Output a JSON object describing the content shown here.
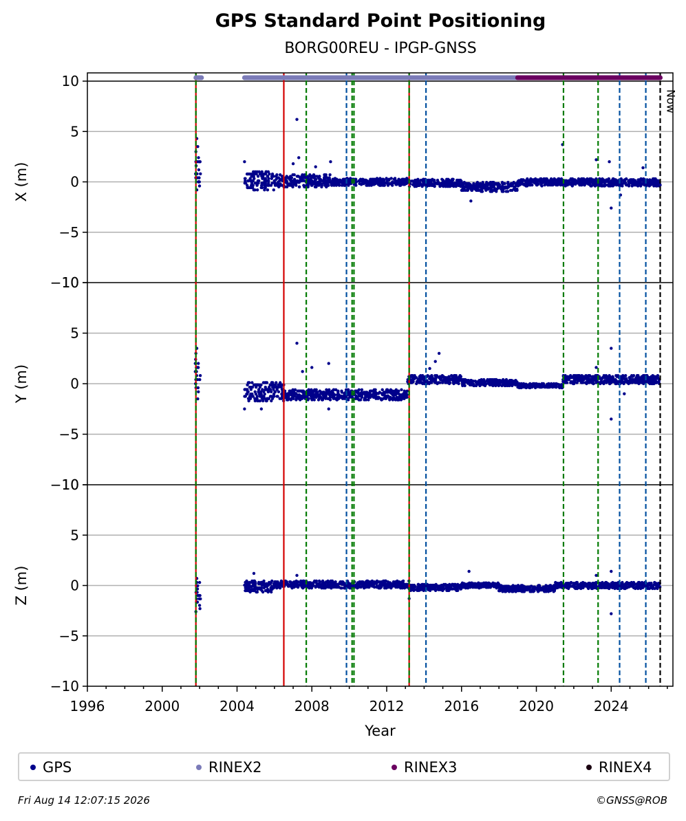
{
  "header": {
    "title": "GPS Standard Point Positioning",
    "subtitle": "BORG00REU - IPGP-GNSS"
  },
  "footer": {
    "timestamp": "Fri Aug 14 12:07:15 2026",
    "copyright": "©GNSS@ROB"
  },
  "colors": {
    "gps": "#00008b",
    "rinex2": "#7b7bb8",
    "rinex3": "#6a0060",
    "rinex4": "#1a0010",
    "red_line": "#d40000",
    "green_dash": "#007a00",
    "blue_dash": "#0050a0",
    "now_dash": "#000000",
    "grid": "#b0b0b0"
  },
  "legend": [
    {
      "label": "GPS",
      "color": "#00008b"
    },
    {
      "label": "RINEX2",
      "color": "#7b7bb8"
    },
    {
      "label": "RINEX3",
      "color": "#6a0060"
    },
    {
      "label": "RINEX4",
      "color": "#1a0010"
    }
  ],
  "chart_data": {
    "type": "scatter",
    "title": "GPS Standard Point Positioning",
    "subtitle": "BORG00REU - IPGP-GNSS",
    "xlabel": "Year",
    "xlim": [
      1996,
      2027.3
    ],
    "xticks": [
      1996,
      2000,
      2004,
      2008,
      2012,
      2016,
      2020,
      2024
    ],
    "ylim": [
      -10,
      10
    ],
    "yticks": [
      -10,
      -5,
      0,
      5,
      10
    ],
    "grid": true,
    "legend_position": "bottom",
    "now_label": "Now",
    "now_year": 2026.62,
    "panels": [
      {
        "ylabel": "X (m)",
        "segments": [
          {
            "x": [
              2001.75,
              2002.05
            ],
            "center": 0.8,
            "spread": 1.6
          },
          {
            "x": [
              2004.4,
              2006.0
            ],
            "center": 0.1,
            "spread": 0.9
          },
          {
            "x": [
              2006.0,
              2009.0
            ],
            "center": 0.1,
            "spread": 0.6
          },
          {
            "x": [
              2009.0,
              2013.2
            ],
            "center": 0.0,
            "spread": 0.35
          },
          {
            "x": [
              2013.2,
              2016.0
            ],
            "center": -0.1,
            "spread": 0.35
          },
          {
            "x": [
              2016.0,
              2019.0
            ],
            "center": -0.5,
            "spread": 0.45
          },
          {
            "x": [
              2019.0,
              2026.62
            ],
            "center": -0.05,
            "spread": 0.35
          }
        ],
        "outliers": [
          [
            2001.85,
            4.3
          ],
          [
            2001.8,
            3.0
          ],
          [
            2001.9,
            3.5
          ],
          [
            2001.85,
            -0.8
          ],
          [
            2007.2,
            6.2
          ],
          [
            2007.3,
            2.4
          ],
          [
            2007.0,
            1.8
          ],
          [
            2009.0,
            2.0
          ],
          [
            2004.4,
            2.0
          ],
          [
            2021.4,
            3.7
          ],
          [
            2023.2,
            2.2
          ],
          [
            2023.9,
            2.0
          ],
          [
            2024.0,
            -2.6
          ],
          [
            2024.5,
            -1.3
          ],
          [
            2025.7,
            1.4
          ],
          [
            2016.5,
            -1.9
          ],
          [
            2008.2,
            1.5
          ]
        ]
      },
      {
        "ylabel": "Y (m)",
        "segments": [
          {
            "x": [
              2001.75,
              2002.05
            ],
            "center": 0.8,
            "spread": 1.6
          },
          {
            "x": [
              2004.4,
              2006.5
            ],
            "center": -0.8,
            "spread": 0.9
          },
          {
            "x": [
              2006.5,
              2013.1
            ],
            "center": -1.1,
            "spread": 0.5
          },
          {
            "x": [
              2013.1,
              2016.0
            ],
            "center": 0.4,
            "spread": 0.4
          },
          {
            "x": [
              2016.0,
              2019.0
            ],
            "center": 0.1,
            "spread": 0.3
          },
          {
            "x": [
              2019.0,
              2021.4
            ],
            "center": -0.2,
            "spread": 0.2
          },
          {
            "x": [
              2021.4,
              2026.62
            ],
            "center": 0.4,
            "spread": 0.4
          }
        ],
        "outliers": [
          [
            2001.85,
            3.5
          ],
          [
            2001.8,
            3.0
          ],
          [
            2001.9,
            -1.5
          ],
          [
            2007.2,
            4.0
          ],
          [
            2007.5,
            1.2
          ],
          [
            2008.0,
            1.6
          ],
          [
            2008.9,
            2.0
          ],
          [
            2008.9,
            -2.5
          ],
          [
            2014.8,
            3.0
          ],
          [
            2014.6,
            2.2
          ],
          [
            2014.3,
            1.5
          ],
          [
            2024.0,
            3.5
          ],
          [
            2024.0,
            -3.5
          ],
          [
            2004.4,
            -2.5
          ],
          [
            2005.3,
            -2.5
          ],
          [
            2023.2,
            1.6
          ],
          [
            2024.7,
            -1.0
          ]
        ]
      },
      {
        "ylabel": "Z (m)",
        "segments": [
          {
            "x": [
              2001.75,
              2002.05
            ],
            "center": -1.0,
            "spread": 1.3
          },
          {
            "x": [
              2004.4,
              2006.0
            ],
            "center": -0.1,
            "spread": 0.55
          },
          {
            "x": [
              2006.0,
              2013.2
            ],
            "center": 0.1,
            "spread": 0.35
          },
          {
            "x": [
              2013.2,
              2016.0
            ],
            "center": -0.2,
            "spread": 0.3
          },
          {
            "x": [
              2016.0,
              2018.0
            ],
            "center": 0.0,
            "spread": 0.25
          },
          {
            "x": [
              2018.0,
              2021.0
            ],
            "center": -0.3,
            "spread": 0.3
          },
          {
            "x": [
              2021.0,
              2026.62
            ],
            "center": 0.0,
            "spread": 0.3
          }
        ],
        "outliers": [
          [
            2001.8,
            -2.6
          ],
          [
            2001.85,
            0.7
          ],
          [
            2004.9,
            1.2
          ],
          [
            2007.2,
            1.0
          ],
          [
            2013.2,
            -1.3
          ],
          [
            2016.4,
            1.4
          ],
          [
            2023.2,
            1.0
          ],
          [
            2024.0,
            1.4
          ],
          [
            2024.0,
            -2.8
          ]
        ]
      }
    ],
    "vertical_lines": [
      {
        "x": 2001.8,
        "style": "solid",
        "color": "#d40000"
      },
      {
        "x": 2001.8,
        "style": "dashed",
        "color": "#007a00"
      },
      {
        "x": 2006.5,
        "style": "solid",
        "color": "#d40000"
      },
      {
        "x": 2007.7,
        "style": "dashed",
        "color": "#007a00"
      },
      {
        "x": 2009.85,
        "style": "dashed",
        "color": "#0050a0"
      },
      {
        "x": 2010.15,
        "style": "dashed",
        "color": "#007a00"
      },
      {
        "x": 2010.25,
        "style": "dashed",
        "color": "#007a00"
      },
      {
        "x": 2013.2,
        "style": "solid",
        "color": "#d40000"
      },
      {
        "x": 2013.2,
        "style": "dashed",
        "color": "#007a00"
      },
      {
        "x": 2014.1,
        "style": "dashed",
        "color": "#0050a0"
      },
      {
        "x": 2021.45,
        "style": "dashed",
        "color": "#007a00"
      },
      {
        "x": 2023.3,
        "style": "dashed",
        "color": "#007a00"
      },
      {
        "x": 2024.45,
        "style": "dashed",
        "color": "#0050a0"
      },
      {
        "x": 2025.85,
        "style": "dashed",
        "color": "#0050a0"
      },
      {
        "x": 2026.62,
        "style": "dashed",
        "color": "#000000"
      }
    ],
    "rinex_bars": [
      {
        "name": "RINEX2",
        "ranges": [
          [
            2001.8,
            2002.1
          ],
          [
            2004.4,
            2019.0
          ]
        ]
      },
      {
        "name": "RINEX3",
        "ranges": [
          [
            2019.0,
            2026.62
          ]
        ]
      }
    ]
  }
}
